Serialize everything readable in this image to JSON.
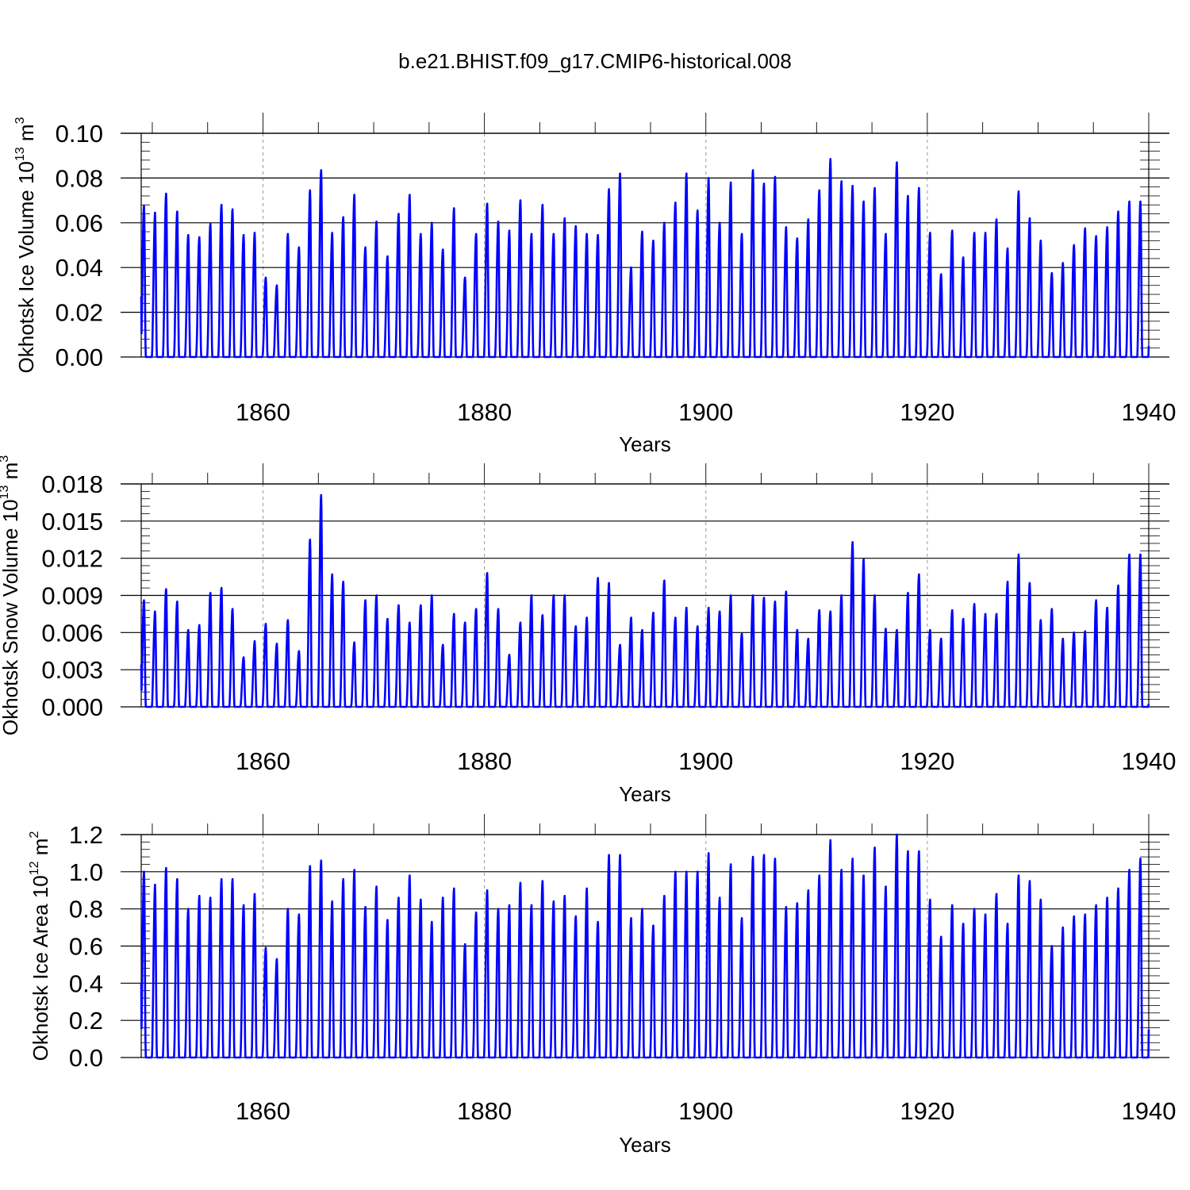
{
  "figure_title": "b.e21.BHIST.f09_g17.CMIP6-historical.008",
  "colors": {
    "line": "#0000ff",
    "axis": "#000000",
    "grid": "#999999"
  },
  "chart_data": [
    {
      "type": "line",
      "title": "",
      "xlabel": "Years",
      "ylabel_main": "Okhotsk Ice Volume 10",
      "ylabel_exp": "13",
      "ylabel_unit": " m",
      "ylabel_unit_exp": "3",
      "xlim": [
        1849,
        1940
      ],
      "ylim": [
        0,
        0.1
      ],
      "yticks": [
        "0.00",
        "0.02",
        "0.04",
        "0.06",
        "0.08",
        "0.10"
      ],
      "xticks": [
        "1860",
        "1880",
        "1900",
        "1920",
        "1940"
      ],
      "grid_x": [
        1860,
        1880,
        1900,
        1920
      ],
      "series": [
        {
          "name": "ice_volume",
          "annual_max": [
            0.0675,
            0.0645,
            0.073,
            0.065,
            0.0545,
            0.0535,
            0.0595,
            0.068,
            0.066,
            0.0545,
            0.0555,
            0.0355,
            0.032,
            0.055,
            0.049,
            0.0745,
            0.0835,
            0.0555,
            0.0625,
            0.0725,
            0.049,
            0.0605,
            0.045,
            0.064,
            0.0725,
            0.055,
            0.06,
            0.048,
            0.0665,
            0.0355,
            0.055,
            0.0685,
            0.0605,
            0.0565,
            0.07,
            0.055,
            0.068,
            0.055,
            0.062,
            0.0585,
            0.055,
            0.0545,
            0.075,
            0.082,
            0.04,
            0.056,
            0.052,
            0.06,
            0.069,
            0.082,
            0.0655,
            0.08,
            0.06,
            0.078,
            0.055,
            0.0835,
            0.0775,
            0.0805,
            0.058,
            0.053,
            0.0615,
            0.0745,
            0.0885,
            0.0785,
            0.0765,
            0.0695,
            0.0755,
            0.055,
            0.087,
            0.072,
            0.0755,
            0.0555,
            0.037,
            0.0565,
            0.0445,
            0.0555,
            0.0555,
            0.0615,
            0.0485,
            0.074,
            0.062,
            0.052,
            0.0375,
            0.042,
            0.05,
            0.0575,
            0.054,
            0.058,
            0.065,
            0.0695,
            0.0695
          ],
          "end_value": 0.005
        }
      ]
    },
    {
      "type": "line",
      "title": "",
      "xlabel": "Years",
      "ylabel_main": "Okhotsk Snow Volume 10",
      "ylabel_exp": "13",
      "ylabel_unit": " m",
      "ylabel_unit_exp": "3",
      "xlim": [
        1849,
        1940
      ],
      "ylim": [
        0,
        0.018
      ],
      "yticks": [
        "0.000",
        "0.003",
        "0.006",
        "0.009",
        "0.012",
        "0.015",
        "0.018"
      ],
      "xticks": [
        "1860",
        "1880",
        "1900",
        "1920",
        "1940"
      ],
      "grid_x": [
        1860,
        1880,
        1900,
        1920
      ],
      "series": [
        {
          "name": "snow_volume",
          "annual_max": [
            0.0086,
            0.0077,
            0.0095,
            0.0085,
            0.0062,
            0.0066,
            0.0092,
            0.0096,
            0.0079,
            0.004,
            0.0053,
            0.0067,
            0.0051,
            0.007,
            0.0045,
            0.0135,
            0.0171,
            0.0107,
            0.0101,
            0.0052,
            0.0086,
            0.009,
            0.0071,
            0.0082,
            0.0068,
            0.0082,
            0.009,
            0.005,
            0.0075,
            0.0068,
            0.0079,
            0.0108,
            0.0079,
            0.0042,
            0.0068,
            0.009,
            0.0074,
            0.009,
            0.009,
            0.0065,
            0.0072,
            0.0104,
            0.01,
            0.005,
            0.0072,
            0.0062,
            0.0076,
            0.0102,
            0.0072,
            0.008,
            0.0065,
            0.008,
            0.0077,
            0.009,
            0.0059,
            0.009,
            0.0088,
            0.0085,
            0.0093,
            0.0062,
            0.0055,
            0.0078,
            0.0077,
            0.009,
            0.0133,
            0.0119,
            0.009,
            0.0063,
            0.0062,
            0.0092,
            0.0107,
            0.0062,
            0.0055,
            0.0078,
            0.0071,
            0.0083,
            0.0075,
            0.0075,
            0.0101,
            0.0123,
            0.01,
            0.007,
            0.0079,
            0.0055,
            0.006,
            0.0061,
            0.0086,
            0.008,
            0.0098,
            0.0123,
            0.0123
          ],
          "end_value": 0.0001
        }
      ]
    },
    {
      "type": "line",
      "title": "",
      "xlabel": "Years",
      "ylabel_main": "Okhotsk Ice Area 10",
      "ylabel_exp": "12",
      "ylabel_unit": " m",
      "ylabel_unit_exp": "2",
      "xlim": [
        1849,
        1940
      ],
      "ylim": [
        0,
        1.2
      ],
      "yticks": [
        "0.0",
        "0.2",
        "0.4",
        "0.6",
        "0.8",
        "1.0",
        "1.2"
      ],
      "xticks": [
        "1860",
        "1880",
        "1900",
        "1920",
        "1940"
      ],
      "grid_x": [
        1860,
        1880,
        1900,
        1920
      ],
      "series": [
        {
          "name": "ice_area",
          "annual_max": [
            1.0,
            0.93,
            1.02,
            0.96,
            0.8,
            0.87,
            0.86,
            0.96,
            0.96,
            0.82,
            0.88,
            0.59,
            0.53,
            0.8,
            0.77,
            1.03,
            1.06,
            0.84,
            0.96,
            1.01,
            0.81,
            0.92,
            0.74,
            0.86,
            0.98,
            0.85,
            0.73,
            0.86,
            0.91,
            0.61,
            0.78,
            0.9,
            0.8,
            0.82,
            0.94,
            0.82,
            0.95,
            0.84,
            0.87,
            0.76,
            0.91,
            0.73,
            1.09,
            1.09,
            0.75,
            0.8,
            0.71,
            0.87,
            1.0,
            1.0,
            1.0,
            1.1,
            0.86,
            1.04,
            0.75,
            1.08,
            1.09,
            1.07,
            0.81,
            0.83,
            0.9,
            0.98,
            1.17,
            1.01,
            1.07,
            0.98,
            1.13,
            0.92,
            1.2,
            1.11,
            1.11,
            0.85,
            0.65,
            0.82,
            0.72,
            0.8,
            0.77,
            0.88,
            0.72,
            0.98,
            0.95,
            0.85,
            0.6,
            0.7,
            0.76,
            0.77,
            0.82,
            0.86,
            0.91,
            1.01,
            1.07
          ],
          "end_value": 0.15
        }
      ]
    }
  ]
}
